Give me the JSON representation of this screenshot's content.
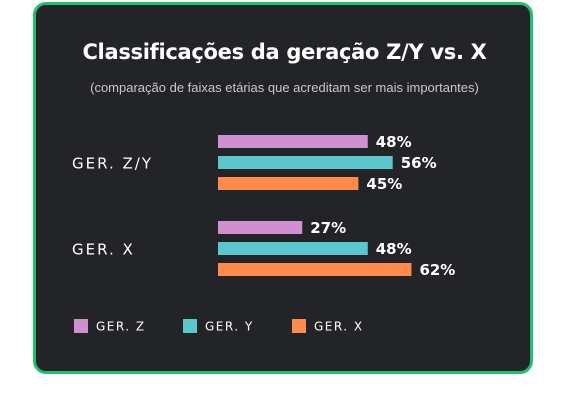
{
  "chart_data": {
    "type": "bar",
    "orientation": "horizontal",
    "title": "Classificações da geração Z/Y vs. X",
    "subtitle": "(comparação de faixas etárias que acreditam ser mais importantes)",
    "categories": [
      "GER. Z/Y",
      "GER. X"
    ],
    "series": [
      {
        "name": "GER. Z",
        "color": "#d08fd0",
        "values": [
          48,
          27
        ],
        "labels": [
          "48%",
          "27%"
        ]
      },
      {
        "name": "GER. Y",
        "color": "#5bc7cc",
        "values": [
          56,
          48
        ],
        "labels": [
          "56%",
          "48%"
        ]
      },
      {
        "name": "GER. X",
        "color": "#ff8a4c",
        "values": [
          45,
          62
        ],
        "labels": [
          "45%",
          "62%"
        ]
      }
    ],
    "xlim": [
      0,
      100
    ],
    "grid": false,
    "legend": "bottom-left",
    "background": "#232428",
    "border_color": "#20bf6b"
  }
}
